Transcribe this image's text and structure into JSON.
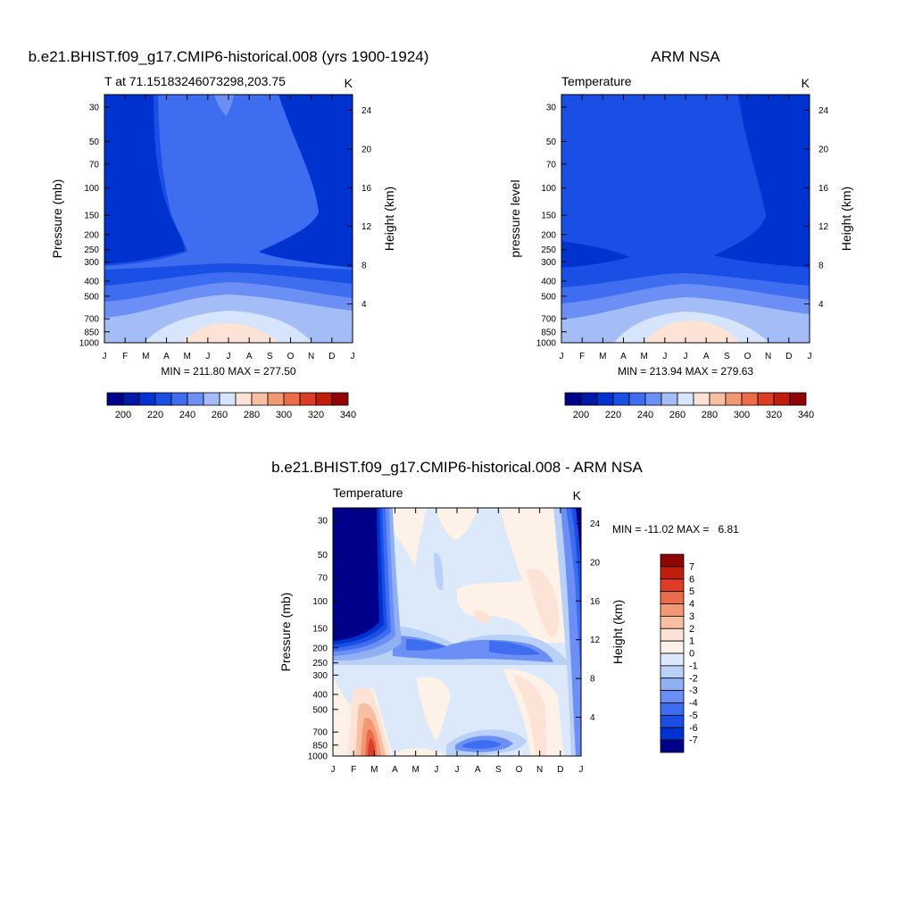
{
  "chart_data": [
    {
      "type": "heatmap",
      "title": "b.e21.BHIST.f09_g17.CMIP6-historical.008 (yrs 1900-1924)",
      "subtitle_left": "T at 71.15183246073298,203.75",
      "units": "K",
      "ylabel_left": "Pressure (mb)",
      "ylabel_right": "Height (km)",
      "stats": "MIN = 211.80 MAX = 277.50",
      "min": 211.8,
      "max": 277.5,
      "x_ticks": [
        "J",
        "F",
        "M",
        "A",
        "M",
        "J",
        "J",
        "A",
        "S",
        "O",
        "N",
        "D",
        "J"
      ],
      "y_ticks": [
        30,
        50,
        70,
        100,
        150,
        200,
        250,
        300,
        400,
        500,
        700,
        850,
        1000
      ],
      "y_ticks_right_km": [
        24,
        20,
        16,
        12,
        8,
        4
      ],
      "colorbar_labels": [
        200,
        220,
        240,
        260,
        280,
        300,
        320,
        340
      ],
      "colorbar_colors": [
        "#00008a",
        "#0019a8",
        "#0032d0",
        "#1a4fe6",
        "#3f6df0",
        "#6b8ff5",
        "#a4bdf7",
        "#d6e5fb",
        "#fde3d5",
        "#f9bfa3",
        "#f49775",
        "#ec6b4b",
        "#de3d25",
        "#c01d0d",
        "#8e0505"
      ],
      "grid": false
    },
    {
      "type": "heatmap",
      "title": "ARM NSA",
      "subtitle_left": "Temperature",
      "units": "K",
      "ylabel_left": "pressure level",
      "ylabel_right": "Height (km)",
      "stats": "MIN = 213.94 MAX = 279.63",
      "min": 213.94,
      "max": 279.63,
      "x_ticks": [
        "J",
        "F",
        "M",
        "A",
        "M",
        "J",
        "J",
        "A",
        "S",
        "O",
        "N",
        "D",
        "J"
      ],
      "y_ticks": [
        30,
        50,
        70,
        100,
        150,
        200,
        250,
        300,
        400,
        500,
        700,
        850,
        1000
      ],
      "y_ticks_right_km": [
        24,
        20,
        16,
        12,
        8,
        4
      ],
      "colorbar_labels": [
        200,
        220,
        240,
        260,
        280,
        300,
        320,
        340
      ],
      "grid": false
    },
    {
      "type": "heatmap",
      "title": "b.e21.BHIST.f09_g17.CMIP6-historical.008 - ARM NSA",
      "subtitle_left": "Temperature",
      "units": "K",
      "ylabel_left": "Pressure (mb)",
      "ylabel_right": "Height (km)",
      "stats": "MIN = -11.02 MAX =   6.81",
      "min": -11.02,
      "max": 6.81,
      "x_ticks": [
        "J",
        "F",
        "M",
        "A",
        "M",
        "J",
        "J",
        "A",
        "S",
        "O",
        "N",
        "D",
        "J"
      ],
      "y_ticks": [
        30,
        50,
        70,
        100,
        150,
        200,
        250,
        300,
        400,
        500,
        700,
        850,
        1000
      ],
      "y_ticks_right_km": [
        24,
        20,
        16,
        12,
        8,
        4
      ],
      "colorbar_labels": [
        7,
        6,
        5,
        4,
        3,
        2,
        1,
        0,
        -1,
        -2,
        -3,
        -4,
        -5,
        -6,
        -7
      ],
      "colorbar_colors": [
        "#8e0505",
        "#c01d0d",
        "#de3d25",
        "#ec6b4b",
        "#f49775",
        "#f9bfa3",
        "#fde3d5",
        "#fdf1e8",
        "#dce9fb",
        "#b9d0f7",
        "#8fb0f3",
        "#6b8ff5",
        "#3f6df0",
        "#1a4fe6",
        "#0032d0",
        "#00008a"
      ],
      "grid": false
    }
  ]
}
